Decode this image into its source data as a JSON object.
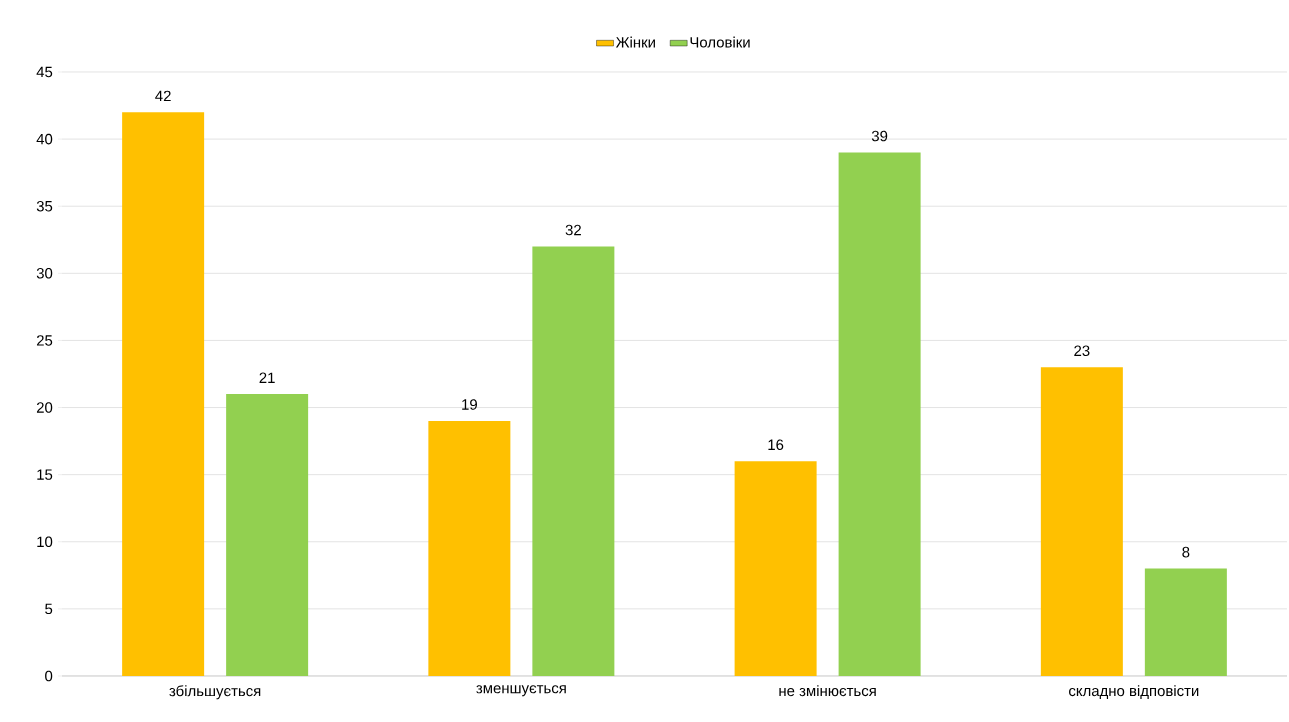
{
  "chart_data": {
    "type": "bar",
    "categories": [
      "збільшується",
      "зменшується",
      "не змінюється",
      "складно відповісти"
    ],
    "series": [
      {
        "name": "Жінки",
        "color": "#ffc000",
        "values": [
          42,
          19,
          16,
          23
        ]
      },
      {
        "name": "Чоловіки",
        "color": "#92d050",
        "values": [
          21,
          32,
          39,
          8
        ]
      }
    ],
    "ylim": [
      0,
      45
    ],
    "yticks": [
      0,
      5,
      10,
      15,
      20,
      25,
      30,
      35,
      40,
      45
    ],
    "grid": "y",
    "legend": "top",
    "data_labels": true
  }
}
